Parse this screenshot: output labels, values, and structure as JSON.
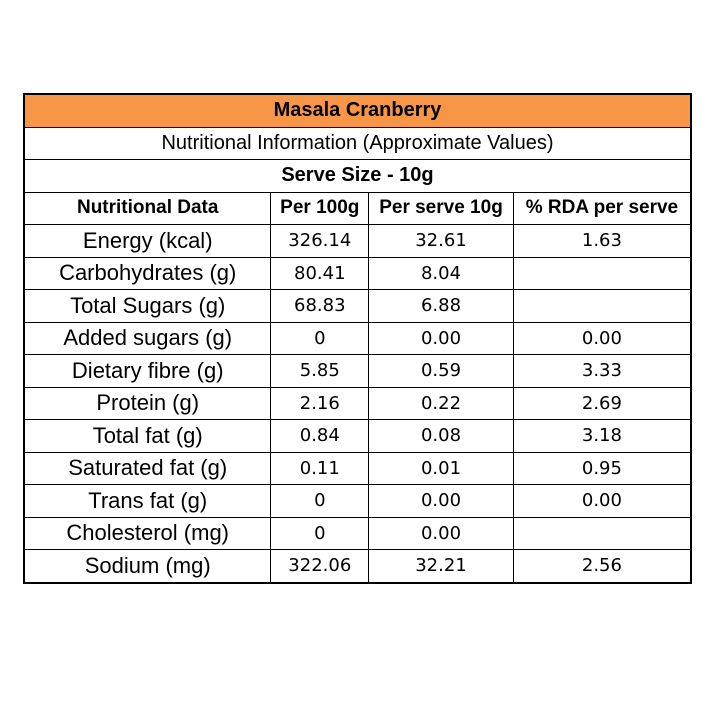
{
  "table": {
    "title": "Masala Cranberry",
    "subtitle": "Nutritional Information (Approximate Values)",
    "serve_size": "Serve Size - 10g",
    "headers": [
      "Nutritional Data",
      "Per 100g",
      "Per serve 10g",
      "% RDA per serve"
    ],
    "rows": [
      [
        "Energy (kcal)",
        "326.14",
        "32.61",
        "1.63"
      ],
      [
        "Carbohydrates (g)",
        "80.41",
        "8.04",
        ""
      ],
      [
        "Total Sugars (g)",
        "68.83",
        "6.88",
        ""
      ],
      [
        "Added sugars (g)",
        "0",
        "0.00",
        "0.00"
      ],
      [
        "Dietary fibre (g)",
        "5.85",
        "0.59",
        "3.33"
      ],
      [
        "Protein (g)",
        "2.16",
        "0.22",
        "2.69"
      ],
      [
        "Total fat (g)",
        "0.84",
        "0.08",
        "3.18"
      ],
      [
        "Saturated fat (g)",
        "0.11",
        "0.01",
        "0.95"
      ],
      [
        "Trans fat (g)",
        "0",
        "0.00",
        "0.00"
      ],
      [
        "Cholesterol (mg)",
        "0",
        "0.00",
        ""
      ],
      [
        "Sodium (mg)",
        "322.06",
        "32.21",
        "2.56"
      ]
    ],
    "title_color": "#f79646"
  }
}
